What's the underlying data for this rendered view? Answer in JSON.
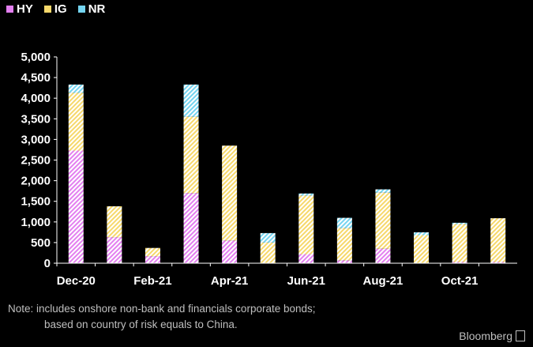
{
  "legend": [
    {
      "label": "HY",
      "color": "#e37ff0"
    },
    {
      "label": "IG",
      "color": "#f6d86b"
    },
    {
      "label": "NR",
      "color": "#74d4f0"
    }
  ],
  "note_line1": "Note: includes onshore non-bank and financials corporate bonds;",
  "note_line2": "based on country of risk equals to China.",
  "brand": "Bloomberg",
  "chart_data": {
    "type": "bar",
    "stacked": true,
    "categories": [
      "Dec-20",
      "Jan-21",
      "Feb-21",
      "Mar-21",
      "Apr-21",
      "May-21",
      "Jun-21",
      "Jul-21",
      "Aug-21",
      "Sep-21",
      "Oct-21",
      "Nov-21"
    ],
    "tick_labels": [
      "Dec-20",
      "",
      "Feb-21",
      "",
      "Apr-21",
      "",
      "Jun-21",
      "",
      "Aug-21",
      "",
      "Oct-21",
      ""
    ],
    "series": [
      {
        "name": "HY",
        "color": "#e37ff0",
        "values": [
          2730,
          630,
          170,
          1700,
          550,
          0,
          220,
          70,
          350,
          0,
          30,
          30
        ]
      },
      {
        "name": "IG",
        "color": "#f6d86b",
        "values": [
          1400,
          750,
          200,
          1850,
          2300,
          500,
          1420,
          780,
          1360,
          680,
          920,
          1060
        ]
      },
      {
        "name": "NR",
        "color": "#74d4f0",
        "values": [
          200,
          0,
          0,
          780,
          0,
          230,
          50,
          250,
          80,
          70,
          30,
          0
        ]
      }
    ],
    "ylim": [
      0,
      5000
    ],
    "yticks": [
      "0",
      "500",
      "1,000",
      "1,500",
      "2,000",
      "2,500",
      "3,000",
      "3,500",
      "4,000",
      "4,500",
      "5,000"
    ],
    "grid": false
  }
}
